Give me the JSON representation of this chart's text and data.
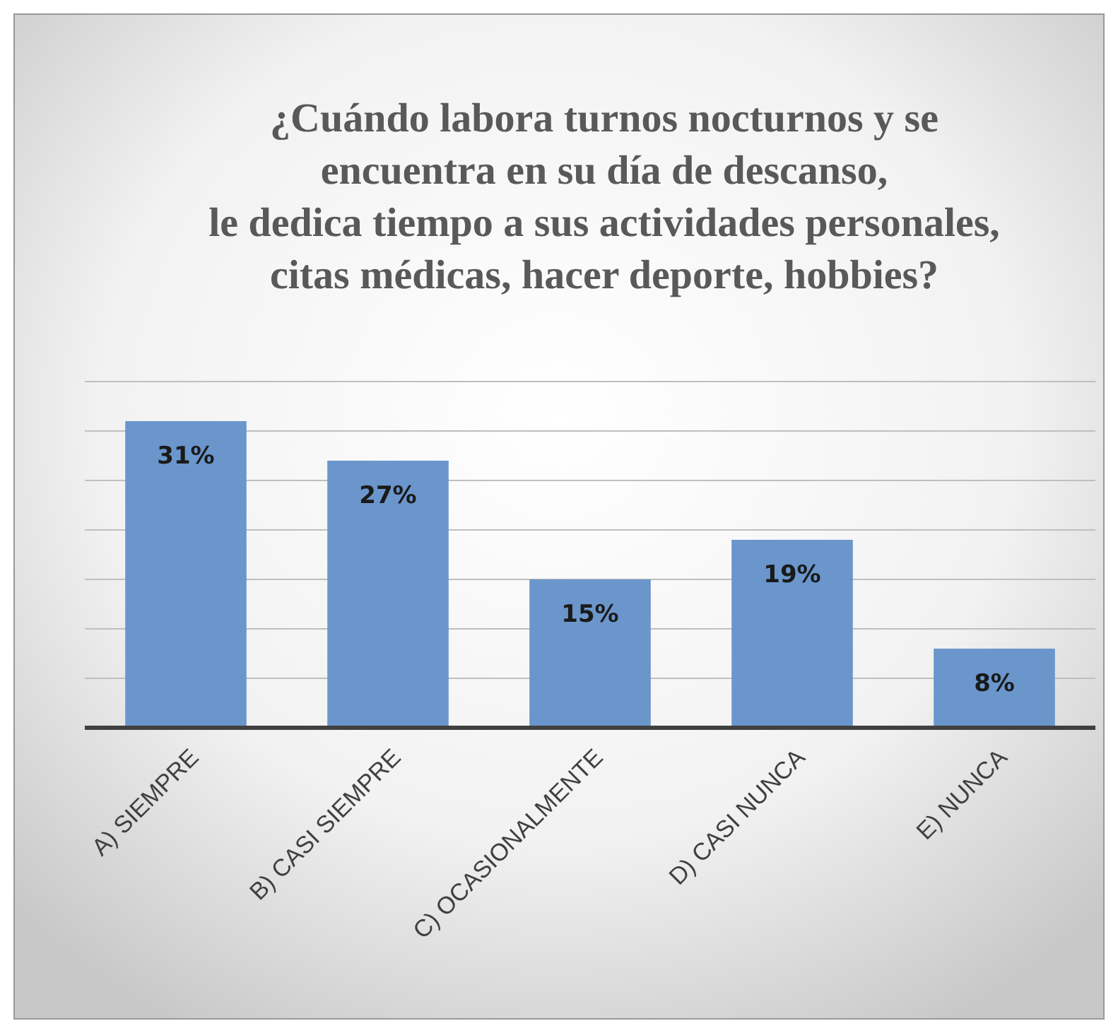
{
  "chart_data": {
    "type": "bar",
    "title": "¿Cuándo labora turnos nocturnos y se\nencuentra en su día de descanso,\nle dedica tiempo a sus actividades personales,\ncitas médicas, hacer deporte, hobbies?",
    "categories": [
      "A) SIEMPRE",
      "B) CASI SIEMPRE",
      "C) OCASIONALMENTE",
      "D) CASI NUNCA",
      "E) NUNCA"
    ],
    "values": [
      31,
      27,
      15,
      19,
      8
    ],
    "color": "#6a96cc",
    "data_labels": true,
    "value_labels": [
      "31%",
      "27%",
      "15%",
      "19%",
      "8%"
    ],
    "ylim": [
      0,
      35
    ],
    "yticks": [
      {
        "value": 0,
        "label": null
      },
      {
        "value": 5,
        "label": null
      },
      {
        "value": 10,
        "label": null
      },
      {
        "value": 15,
        "label": null
      },
      {
        "value": 20,
        "label": null
      },
      {
        "value": 25,
        "label": null
      },
      {
        "value": 30,
        "label": null
      },
      {
        "value": 35,
        "label": null
      }
    ],
    "grid": "y",
    "tick_labels": "x"
  }
}
